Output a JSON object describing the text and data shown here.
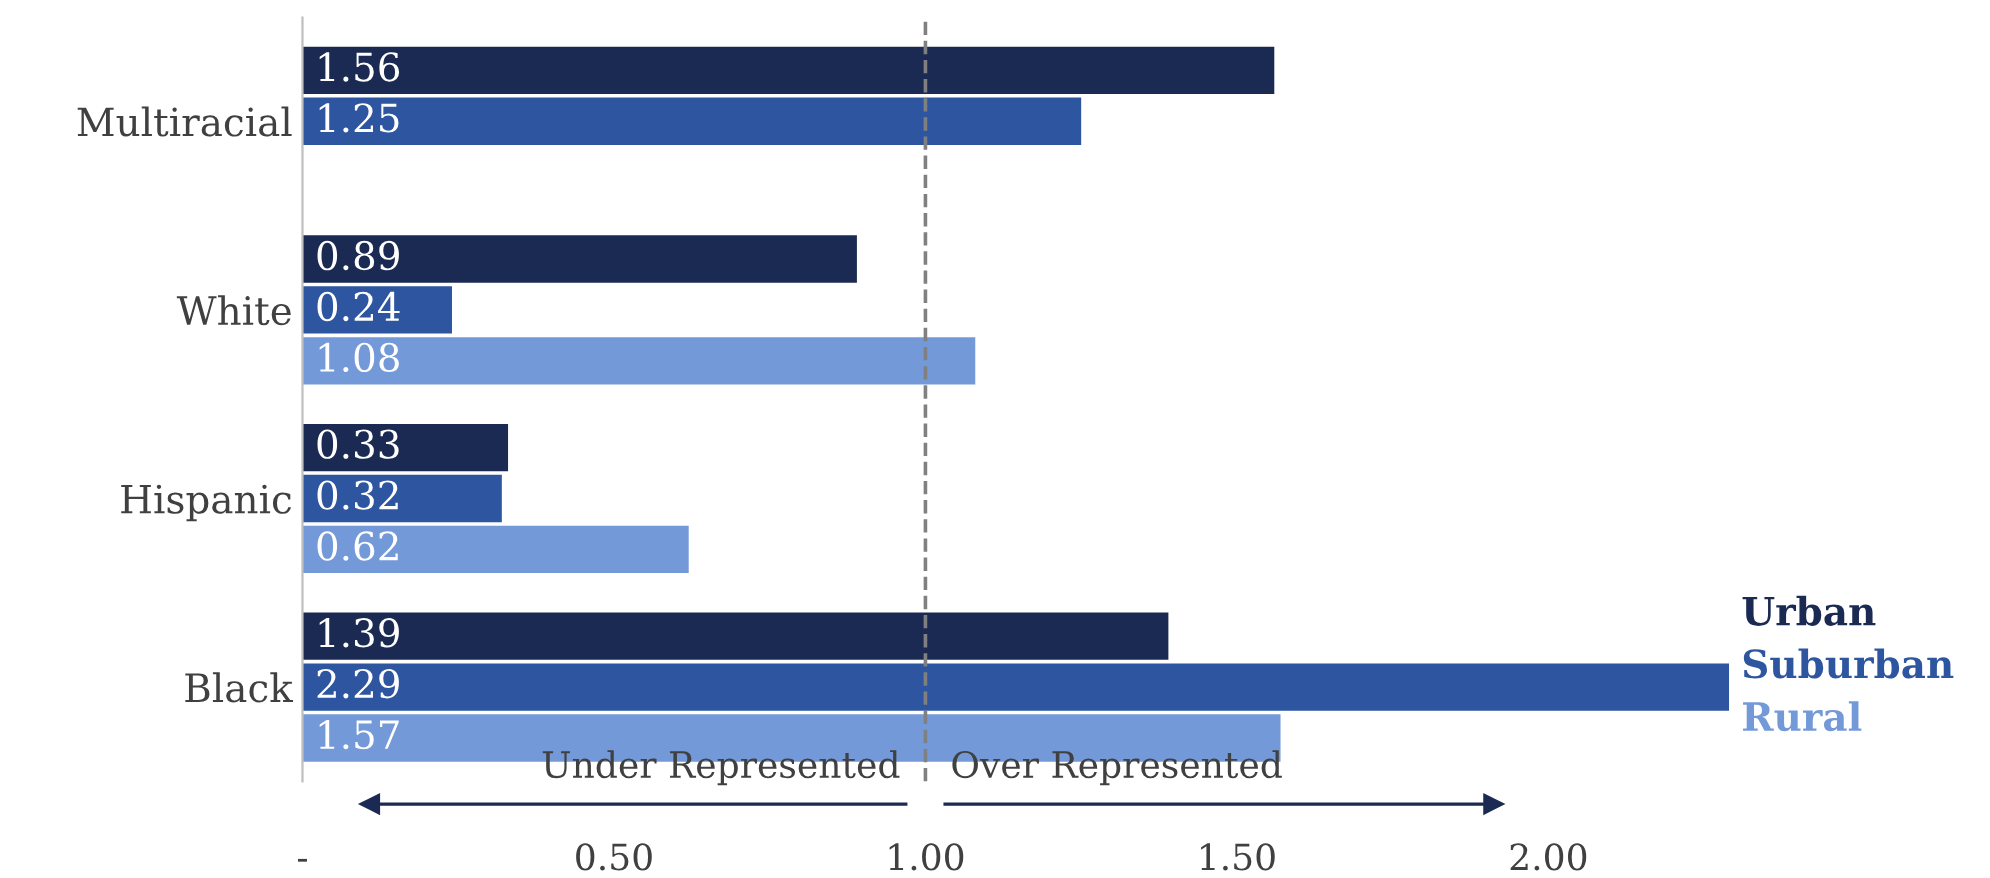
{
  "chart_data": {
    "type": "bar",
    "orientation": "horizontal",
    "categories": [
      "Multiracial",
      "White",
      "Hispanic",
      "Black"
    ],
    "series": [
      {
        "name": "Urban",
        "color": "#1b2a52",
        "values": [
          1.56,
          0.89,
          0.33,
          1.39
        ]
      },
      {
        "name": "Suburban",
        "color": "#2e55a0",
        "values": [
          1.25,
          0.24,
          0.32,
          2.29
        ]
      },
      {
        "name": "Rural",
        "color": "#7399d8",
        "values": [
          null,
          1.08,
          0.62,
          1.57
        ]
      }
    ],
    "xlim": [
      0,
      2.3
    ],
    "xticks": [
      {
        "value": 0,
        "label": "-"
      },
      {
        "value": 0.5,
        "label": "0.50"
      },
      {
        "value": 1.0,
        "label": "1.00"
      },
      {
        "value": 1.5,
        "label": "1.50"
      },
      {
        "value": 2.0,
        "label": "2.00"
      }
    ],
    "ref_lines": [
      {
        "axis": "x",
        "value": 1.0,
        "color": "#808080",
        "line_style": "dashed"
      }
    ],
    "annotations": [
      "Under Represented",
      "Over Represented"
    ],
    "data_labels": true,
    "legend": "right",
    "grid": false
  }
}
